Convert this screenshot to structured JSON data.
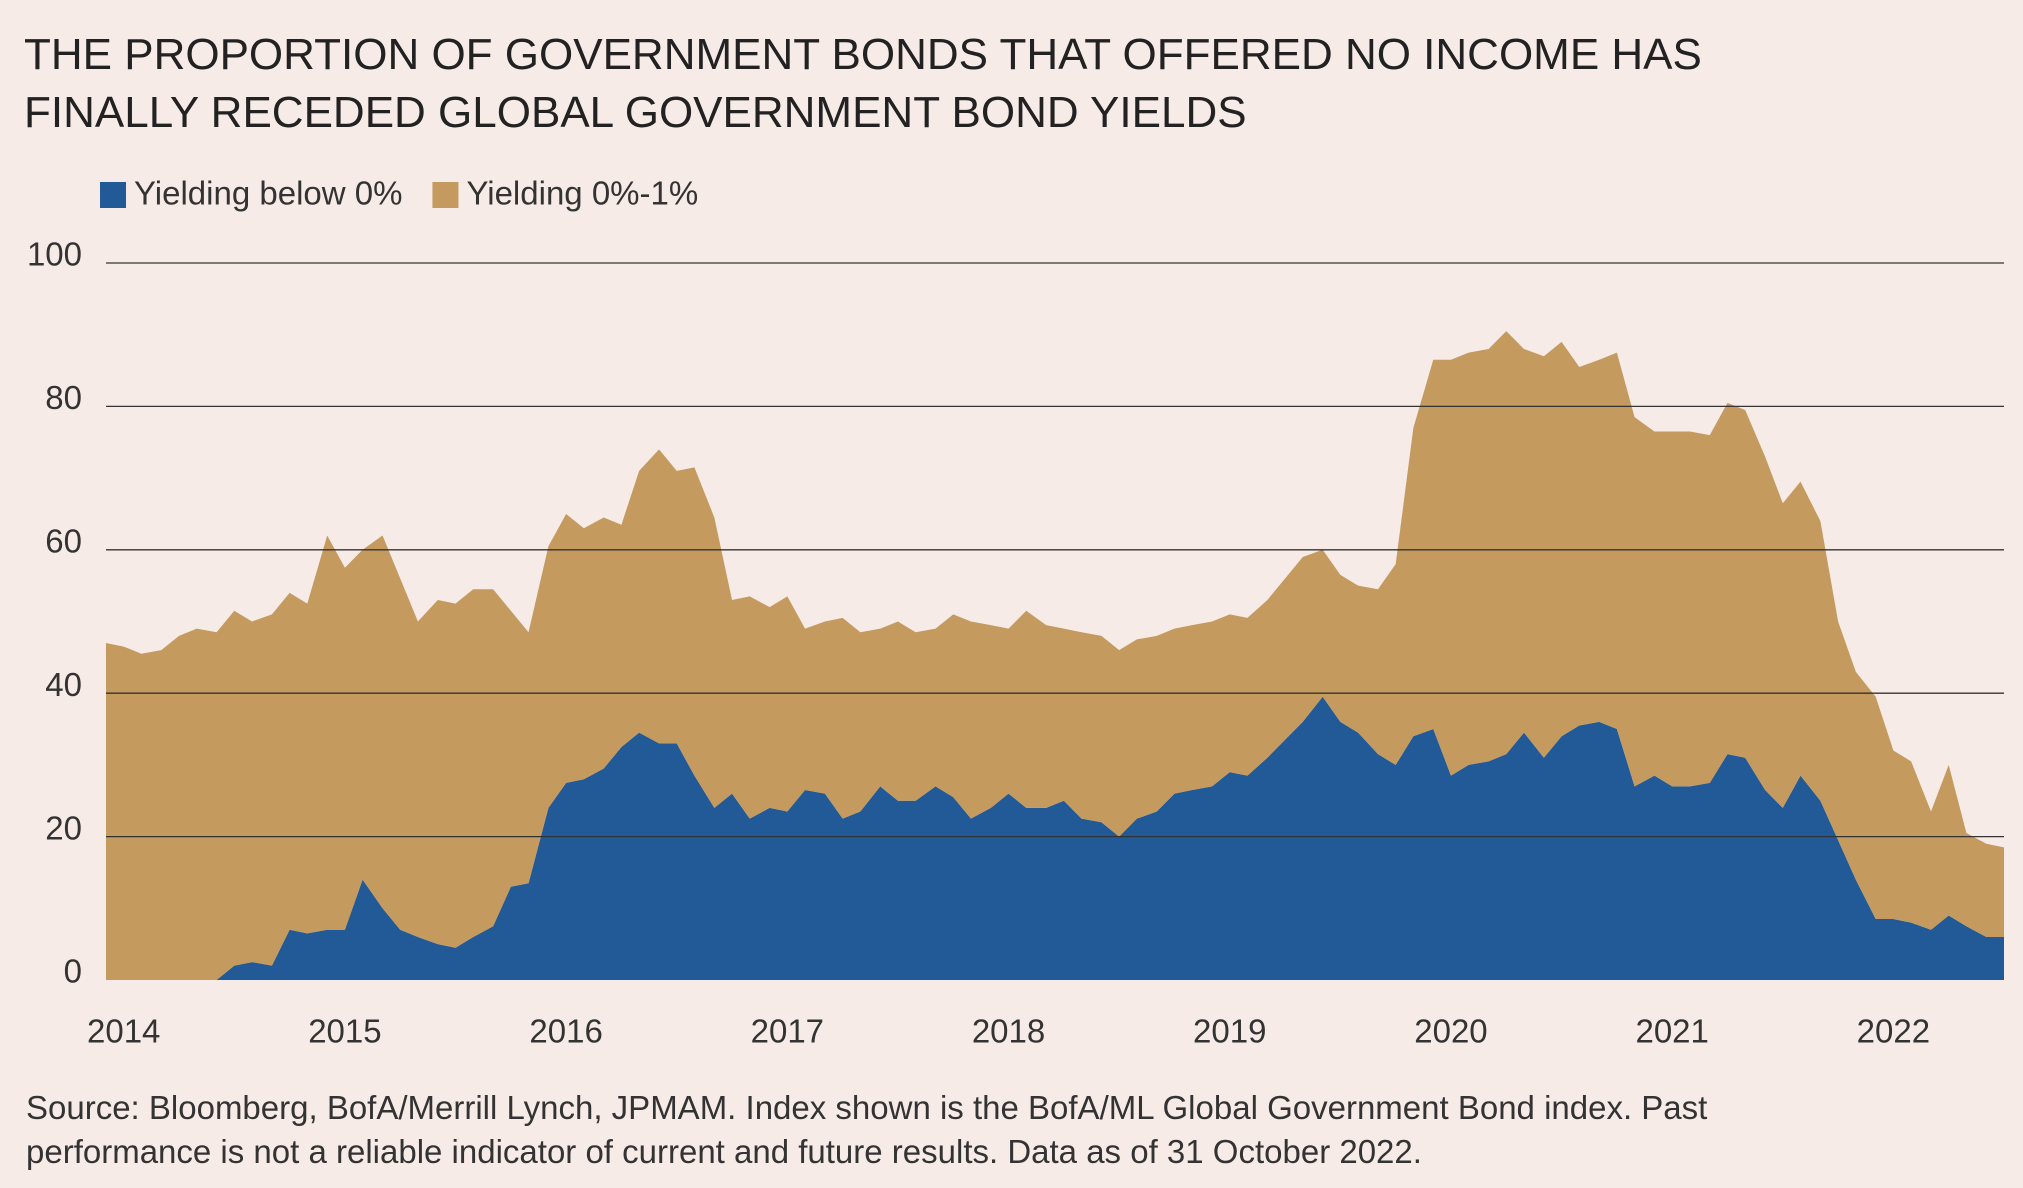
{
  "chart_data": {
    "type": "stacked_area",
    "title": "THE PROPORTION OF GOVERNMENT BONDS THAT OFFERED NO INCOME HAS FINALLY RECEDED GLOBAL GOVERNMENT BOND YIELDS",
    "source": "Source: Bloomberg, BofA/Merrill Lynch, JPMAM. Index shown is the BofA/ML Global Government Bond index. Past performance is not a reliable indicator of current and future results. Data as of 31 October 2022.",
    "x": [
      2013.92,
      2014.0,
      2014.08,
      2014.17,
      2014.25,
      2014.33,
      2014.42,
      2014.5,
      2014.58,
      2014.67,
      2014.75,
      2014.83,
      2014.92,
      2015.0,
      2015.08,
      2015.17,
      2015.25,
      2015.33,
      2015.42,
      2015.5,
      2015.58,
      2015.67,
      2015.75,
      2015.83,
      2015.92,
      2016.0,
      2016.08,
      2016.17,
      2016.25,
      2016.33,
      2016.42,
      2016.5,
      2016.58,
      2016.67,
      2016.75,
      2016.83,
      2016.92,
      2017.0,
      2017.08,
      2017.17,
      2017.25,
      2017.33,
      2017.42,
      2017.5,
      2017.58,
      2017.67,
      2017.75,
      2017.83,
      2017.92,
      2018.0,
      2018.08,
      2018.17,
      2018.25,
      2018.33,
      2018.42,
      2018.5,
      2018.58,
      2018.67,
      2018.75,
      2018.83,
      2018.92,
      2019.0,
      2019.08,
      2019.17,
      2019.25,
      2019.33,
      2019.42,
      2019.5,
      2019.58,
      2019.67,
      2019.75,
      2019.83,
      2019.92,
      2020.0,
      2020.08,
      2020.17,
      2020.25,
      2020.33,
      2020.42,
      2020.5,
      2020.58,
      2020.67,
      2020.75,
      2020.83,
      2020.92,
      2021.0,
      2021.08,
      2021.17,
      2021.25,
      2021.33,
      2021.42,
      2021.5,
      2021.58,
      2021.67,
      2021.75,
      2021.83,
      2021.92,
      2022.0,
      2022.08,
      2022.17,
      2022.25,
      2022.33,
      2022.42,
      2022.5
    ],
    "series": [
      {
        "name": "Yielding below 0%",
        "color": "#225a98",
        "values": [
          0,
          0,
          0,
          0,
          0,
          0,
          0,
          2,
          2.5,
          2,
          7,
          6.5,
          7,
          7,
          14,
          10,
          7,
          6,
          5,
          4.5,
          6,
          7.5,
          13,
          13.5,
          24,
          27.5,
          28,
          29.5,
          32.5,
          34.5,
          33,
          33,
          28.5,
          24,
          26,
          22.5,
          24,
          23.5,
          26.5,
          26,
          22.5,
          23.5,
          27,
          25,
          25,
          27,
          25.5,
          22.5,
          24,
          26,
          24,
          24,
          25,
          22.5,
          22,
          20,
          22.5,
          23.5,
          26,
          26.5,
          27,
          29,
          28.5,
          31,
          33.5,
          36,
          39.5,
          36,
          34.5,
          31.5,
          30,
          34,
          35,
          28.5,
          30,
          30.5,
          31.5,
          34.5,
          31,
          34,
          35.5,
          36,
          35,
          27,
          28.5,
          27,
          27,
          27.5,
          31.5,
          31,
          26.5,
          24,
          28.5,
          25,
          19.5,
          14,
          8.5,
          8.5,
          8,
          7,
          9,
          7.5,
          6,
          6
        ]
      },
      {
        "name": "Yielding 0%-1%",
        "color": "#c49a5e",
        "values": [
          47,
          46.5,
          45.5,
          46,
          48,
          49,
          48.5,
          49.5,
          47.5,
          49,
          47,
          46,
          55,
          50.5,
          46,
          52,
          49,
          44,
          48,
          48,
          48.5,
          47,
          38.5,
          35,
          36.5,
          37.5,
          35,
          35,
          31,
          36.5,
          41,
          38,
          43,
          40.5,
          27,
          31,
          28,
          30,
          22.5,
          24,
          28,
          25,
          22,
          25,
          23.5,
          22,
          25.5,
          27.5,
          25.5,
          23,
          27.5,
          25.5,
          24,
          26,
          26,
          26,
          25,
          24.5,
          23,
          23,
          23,
          22,
          22,
          22,
          22.5,
          23,
          20.5,
          20.5,
          20.5,
          23,
          28,
          43,
          51.5,
          58,
          57.5,
          57.5,
          59,
          53.5,
          56,
          55,
          50,
          50.5,
          52.5,
          51.5,
          48,
          49.5,
          49.5,
          48.5,
          49,
          48.5,
          46.5,
          42.5,
          41,
          39,
          30.5,
          29,
          31,
          23.5,
          22.5,
          16.5,
          21,
          13,
          13,
          12.5
        ]
      }
    ],
    "xlim": [
      2013.92,
      2022.5
    ],
    "xticks": [
      2014,
      2015,
      2016,
      2017,
      2018,
      2019,
      2020,
      2021,
      2022
    ],
    "ylim": [
      0,
      100
    ],
    "yticks": [
      0,
      20,
      40,
      60,
      80,
      100
    ],
    "grid": true
  }
}
